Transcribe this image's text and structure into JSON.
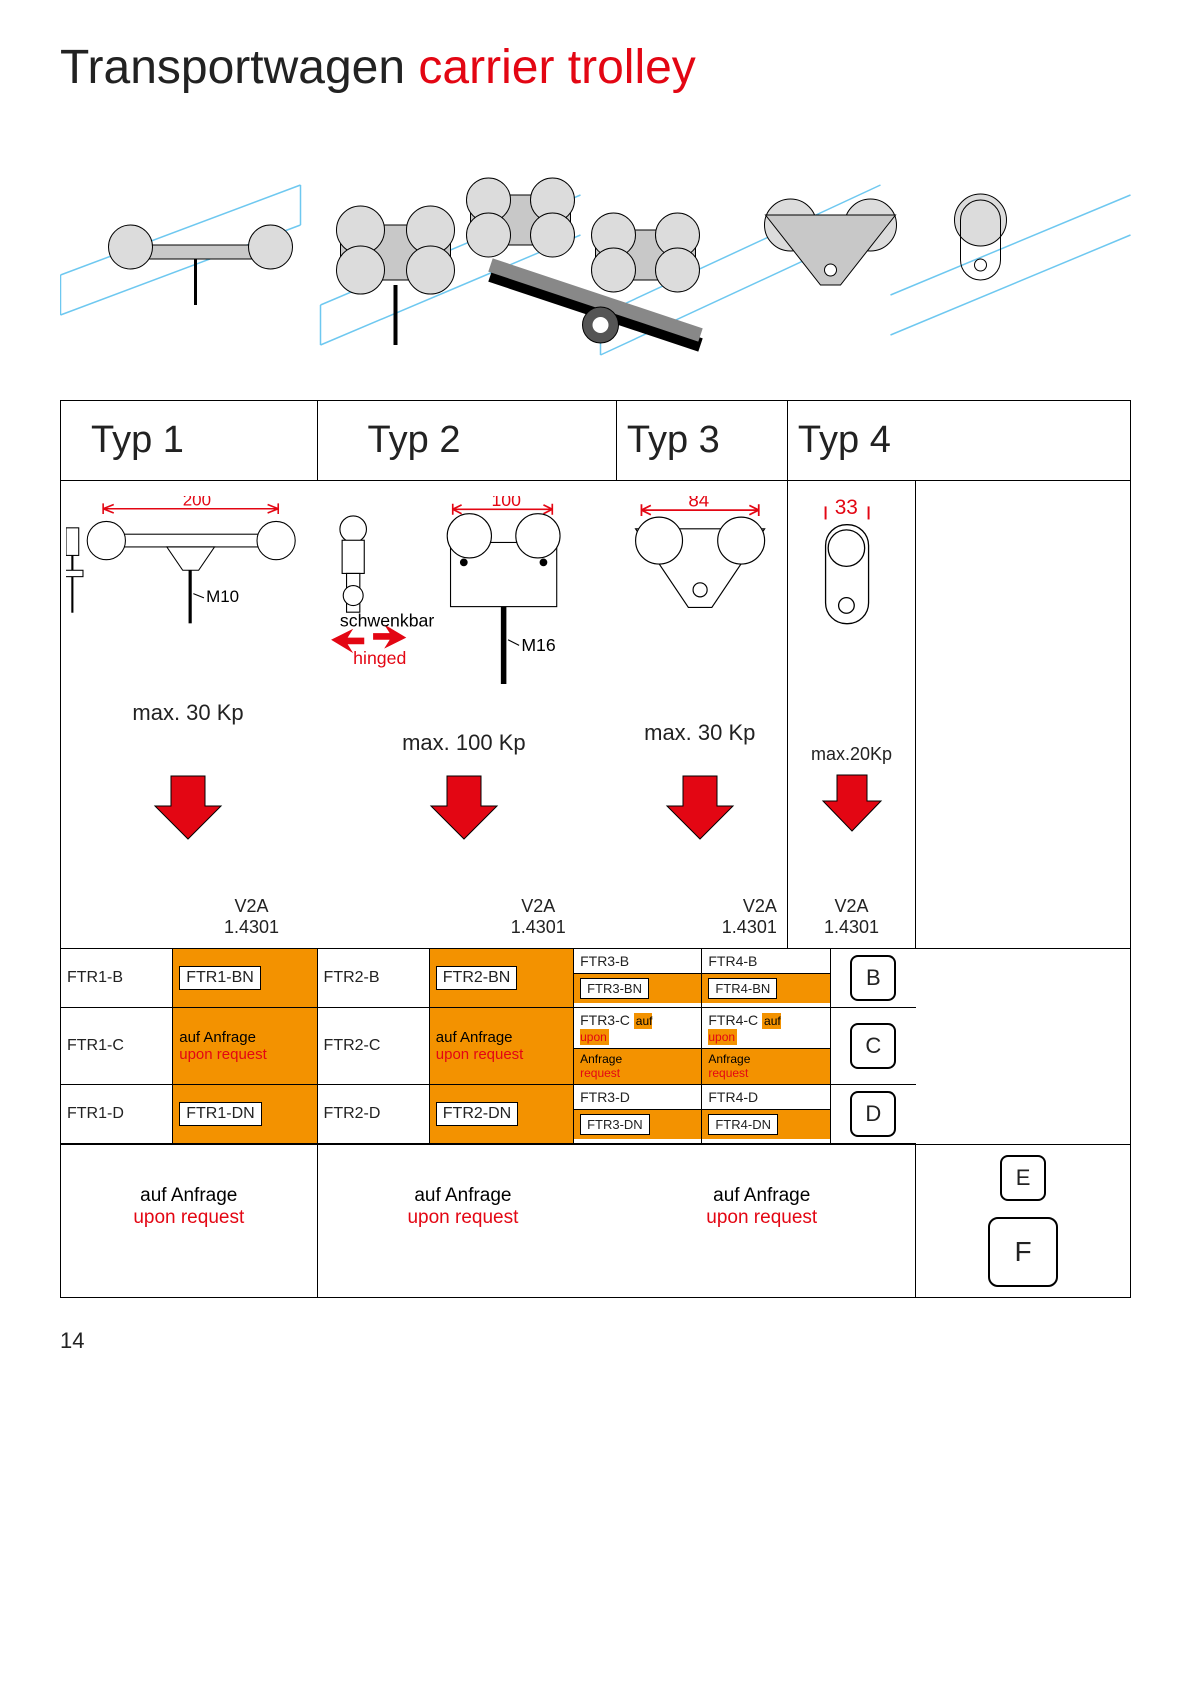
{
  "title": {
    "de": "Transportwagen",
    "en": "carrier trolley"
  },
  "colors": {
    "accent_red": "#e30613",
    "orange": "#f39200",
    "rail_blue": "#6ec8f0",
    "wheel_fill": "#dcdcdc",
    "body_fill": "#c8c8c8",
    "outline": "#000000"
  },
  "types": [
    {
      "label": "Typ 1",
      "dim": "200",
      "thread": "M10",
      "load": "max. 30 Kp"
    },
    {
      "label": "Typ 2",
      "dim": "100",
      "thread": "M16",
      "load": "max. 100 Kp",
      "hinge_de": "schwenkbar",
      "hinge_en": "hinged"
    },
    {
      "label": "Typ 3",
      "dim": "84",
      "load": "max. 30 Kp"
    },
    {
      "label": "Typ 4",
      "dim": "33",
      "load": "max.20Kp"
    }
  ],
  "material": {
    "grade": "V2A",
    "number": "1.4301"
  },
  "request": {
    "de": "auf Anfrage",
    "en": "upon request"
  },
  "request_short": {
    "de1": "auf",
    "en1": "upon",
    "de2": "Anfrage",
    "en2": "request"
  },
  "rows": [
    {
      "profile": "B",
      "cells": [
        "FTR1-B",
        "FTR1-BN",
        "FTR2-B",
        "FTR2-BN"
      ],
      "split34": [
        {
          "top": "FTR3-B",
          "bot": "FTR3-BN"
        },
        {
          "top": "FTR4-B",
          "bot": "FTR4-BN"
        }
      ]
    },
    {
      "profile": "C",
      "cells": [
        "FTR1-C",
        "REQUEST",
        "FTR2-C",
        "REQUEST"
      ],
      "split34": [
        {
          "top": "FTR3-C",
          "bot": "REQUEST_SHORT"
        },
        {
          "top": "FTR4-C",
          "bot": "REQUEST_SHORT"
        }
      ]
    },
    {
      "profile": "D",
      "cells": [
        "FTR1-D",
        "FTR1-DN",
        "FTR2-D",
        "FTR2-DN"
      ],
      "split34": [
        {
          "top": "FTR3-D",
          "bot": "FTR3-DN"
        },
        {
          "top": "FTR4-D",
          "bot": "FTR4-DN"
        }
      ]
    }
  ],
  "ef_profiles": [
    "E",
    "F"
  ],
  "page_number": "14"
}
